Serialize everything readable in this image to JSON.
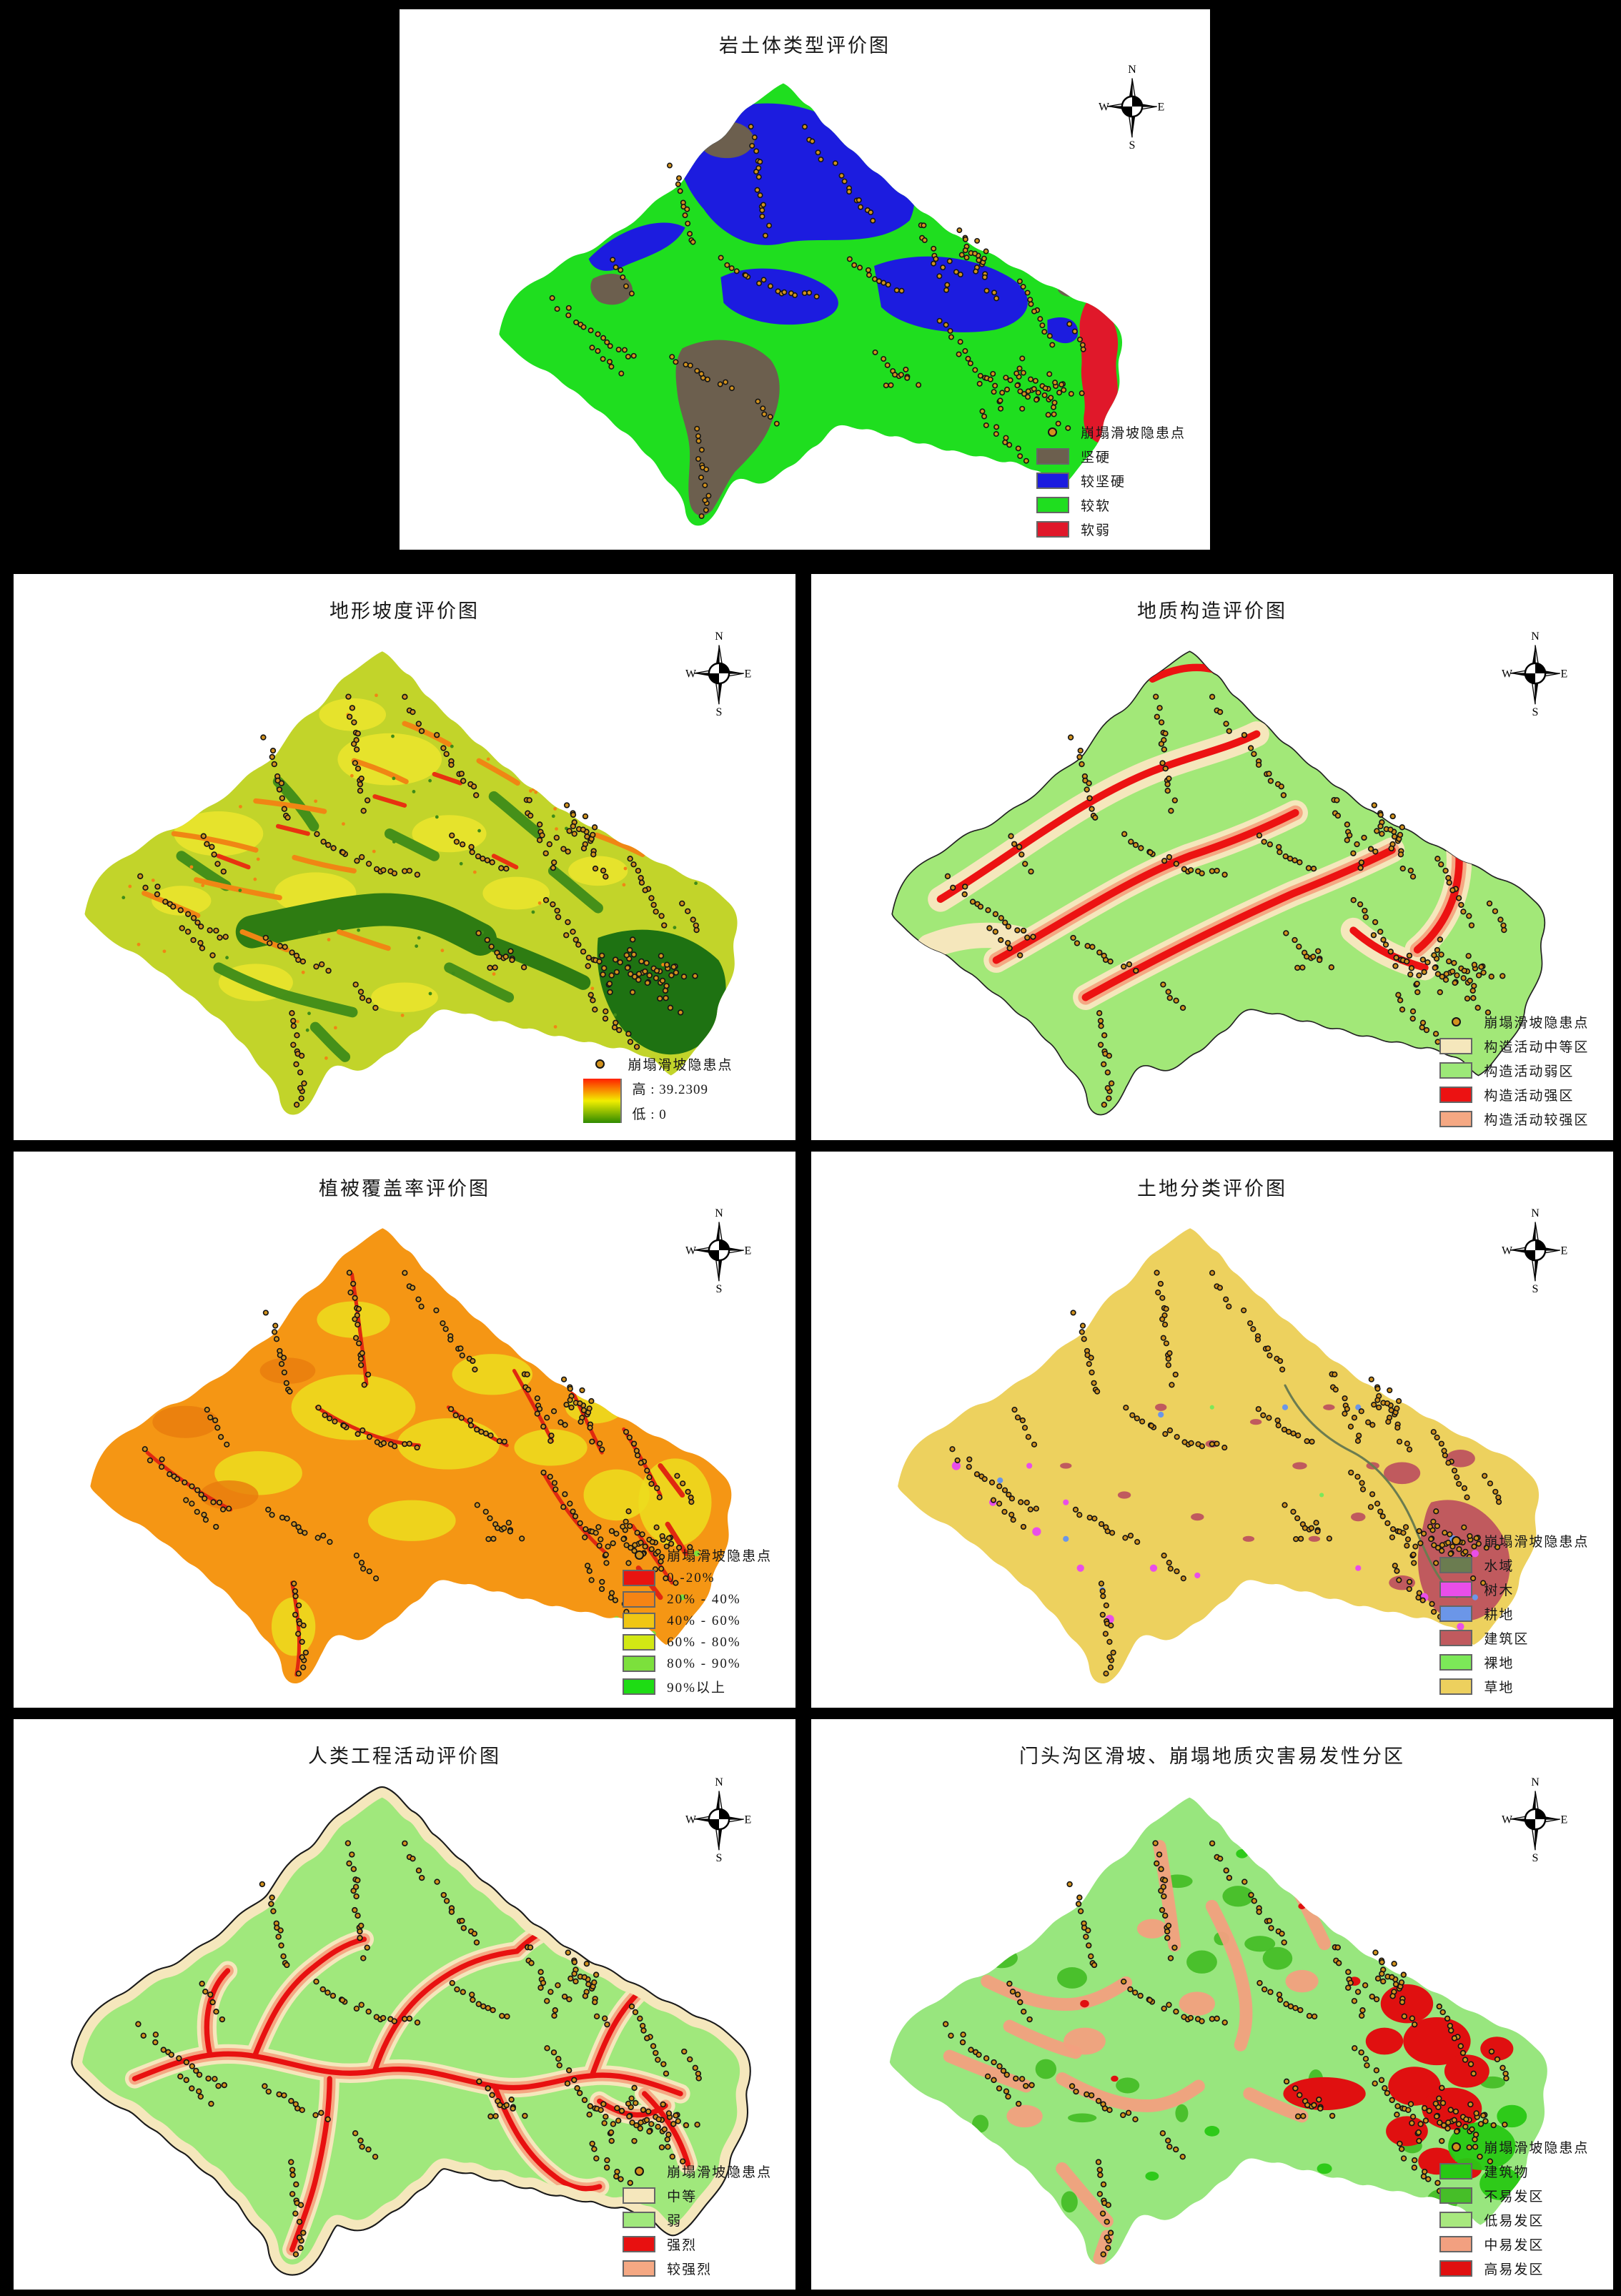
{
  "shared": {
    "compass": {
      "n": "N",
      "e": "E",
      "s": "S",
      "w": "W"
    },
    "hazard_point": {
      "label": "崩塌滑坡隐患点",
      "fill": "#D2921E",
      "stroke": "#141414"
    }
  },
  "panels": [
    {
      "title": "岩土体类型评价图",
      "map": {
        "base": "#1FDE1F"
      },
      "legend": [
        {
          "type": "point",
          "label": "崩塌滑坡隐患点"
        },
        {
          "type": "swatch",
          "color": "#6C5F4E",
          "label": "坚硬"
        },
        {
          "type": "swatch",
          "color": "#1C1CDF",
          "label": "较坚硬"
        },
        {
          "type": "swatch",
          "color": "#1FDE1F",
          "label": "较软"
        },
        {
          "type": "swatch",
          "color": "#E0182A",
          "label": "软弱"
        }
      ]
    },
    {
      "title": "地形坡度评价图",
      "map": {
        "base": "#C2D42A"
      },
      "legend": [
        {
          "type": "point",
          "label": "崩塌滑坡隐患点"
        },
        {
          "type": "gradient",
          "high_label": "高 : 39.2309",
          "low_label": "低 : 0",
          "stops": [
            "#FF2000",
            "#F2EE00",
            "#2E8A00"
          ]
        }
      ]
    },
    {
      "title": "地质构造评价图",
      "map": {
        "base": "#A2E878"
      },
      "legend": [
        {
          "type": "point",
          "label": "崩塌滑坡隐患点"
        },
        {
          "type": "swatch",
          "color": "#F5E7BC",
          "label": "构造活动中等区"
        },
        {
          "type": "swatch",
          "color": "#9CE878",
          "label": "构造活动弱区"
        },
        {
          "type": "swatch",
          "color": "#EC1212",
          "label": "构造活动强区"
        },
        {
          "type": "swatch",
          "color": "#F5A883",
          "label": "构造活动较强区"
        }
      ]
    },
    {
      "title": "植被覆盖率评价图",
      "map": {
        "base": "#F59614"
      },
      "legend": [
        {
          "type": "point",
          "label": "崩塌滑坡隐患点"
        },
        {
          "type": "swatch",
          "color": "#E81410",
          "label": "0 -20%"
        },
        {
          "type": "swatch",
          "color": "#F58414",
          "label": "20% - 40%"
        },
        {
          "type": "swatch",
          "color": "#F0C614",
          "label": "40% - 60%"
        },
        {
          "type": "swatch",
          "color": "#D2E814",
          "label": "60% - 80%"
        },
        {
          "type": "swatch",
          "color": "#7CE03C",
          "label": "80% - 90%"
        },
        {
          "type": "swatch",
          "color": "#1EDC14",
          "label": "90%以上"
        }
      ]
    },
    {
      "title": "土地分类评价图",
      "map": {
        "base": "#EDD15E"
      },
      "legend": [
        {
          "type": "point",
          "label": "崩塌滑坡隐患点"
        },
        {
          "type": "swatch",
          "color": "#6B7C50",
          "label": "水域"
        },
        {
          "type": "swatch",
          "color": "#E94EE9",
          "label": "树木"
        },
        {
          "type": "swatch",
          "color": "#6B96E8",
          "label": "耕地"
        },
        {
          "type": "swatch",
          "color": "#C05A5E",
          "label": "建筑区"
        },
        {
          "type": "swatch",
          "color": "#7CE858",
          "label": "裸地"
        },
        {
          "type": "swatch",
          "color": "#EDD05E",
          "label": "草地"
        }
      ]
    },
    {
      "title": "人类工程活动评价图",
      "map": {
        "base": "#A0E87C"
      },
      "legend": [
        {
          "type": "point",
          "label": "崩塌滑坡隐患点"
        },
        {
          "type": "swatch",
          "color": "#F5E7BC",
          "label": "中等"
        },
        {
          "type": "swatch",
          "color": "#A0E87C",
          "label": "弱"
        },
        {
          "type": "swatch",
          "color": "#E81010",
          "label": "强烈"
        },
        {
          "type": "swatch",
          "color": "#F5A883",
          "label": "较强烈"
        }
      ]
    },
    {
      "title": "门头沟区滑坡、崩塌地质灾害易发性分区",
      "map": {
        "base": "#98E67E"
      },
      "legend": [
        {
          "type": "point",
          "label": "崩塌滑坡隐患点"
        },
        {
          "type": "swatch",
          "color": "#28C814",
          "label": "建筑物"
        },
        {
          "type": "swatch",
          "color": "#46BE28",
          "label": "不易发区"
        },
        {
          "type": "swatch",
          "color": "#A8E87E",
          "label": "低易发区"
        },
        {
          "type": "swatch",
          "color": "#F2A080",
          "label": "中易发区"
        },
        {
          "type": "swatch",
          "color": "#E01010",
          "label": "高易发区"
        }
      ]
    }
  ]
}
